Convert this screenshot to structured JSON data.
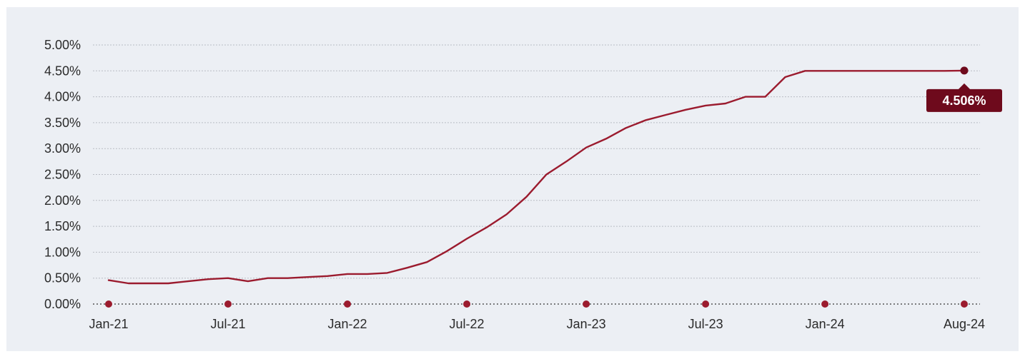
{
  "chart_data": {
    "type": "line",
    "title": "",
    "xlabel": "",
    "ylabel": "",
    "ylim": [
      0,
      5
    ],
    "y_ticks": [
      "0.00%",
      "0.50%",
      "1.00%",
      "1.50%",
      "2.00%",
      "2.50%",
      "3.00%",
      "3.50%",
      "4.00%",
      "4.50%",
      "5.00%"
    ],
    "y_tick_values": [
      0,
      0.5,
      1,
      1.5,
      2,
      2.5,
      3,
      3.5,
      4,
      4.5,
      5
    ],
    "x_ticks": [
      "Jan-21",
      "Jul-21",
      "Jan-22",
      "Jul-22",
      "Jan-23",
      "Jul-23",
      "Jan-24",
      "Aug-24"
    ],
    "x_tick_values": [
      "2021-01",
      "2021-07",
      "2022-01",
      "2022-07",
      "2023-01",
      "2023-07",
      "2024-01",
      "2024-08"
    ],
    "grid": true,
    "color": "#9b1b2e",
    "series": [
      {
        "x": [
          "2021-01",
          "2021-02",
          "2021-03",
          "2021-04",
          "2021-05",
          "2021-06",
          "2021-07",
          "2021-08",
          "2021-09",
          "2021-10",
          "2021-11",
          "2021-12",
          "2022-01",
          "2022-02",
          "2022-03",
          "2022-04",
          "2022-05",
          "2022-06",
          "2022-07",
          "2022-08",
          "2022-09",
          "2022-10",
          "2022-11",
          "2022-12",
          "2023-01",
          "2023-02",
          "2023-03",
          "2023-04",
          "2023-05",
          "2023-06",
          "2023-07",
          "2023-08",
          "2023-09",
          "2023-10",
          "2023-11",
          "2023-12",
          "2024-01",
          "2024-02",
          "2024-03",
          "2024-04",
          "2024-05",
          "2024-06",
          "2024-07",
          "2024-08"
        ],
        "values": [
          0.46,
          0.4,
          0.4,
          0.4,
          0.44,
          0.48,
          0.5,
          0.44,
          0.5,
          0.5,
          0.52,
          0.54,
          0.58,
          0.58,
          0.6,
          0.7,
          0.81,
          1.02,
          1.26,
          1.48,
          1.73,
          2.07,
          2.5,
          2.75,
          3.02,
          3.19,
          3.4,
          3.55,
          3.65,
          3.75,
          3.83,
          3.87,
          4.0,
          4.0,
          4.38,
          4.5,
          4.5,
          4.5,
          4.5,
          4.5,
          4.5,
          4.5,
          4.5,
          4.506
        ]
      }
    ],
    "callout": {
      "label": "4.506%",
      "x": "2024-08",
      "y": 4.506
    }
  }
}
